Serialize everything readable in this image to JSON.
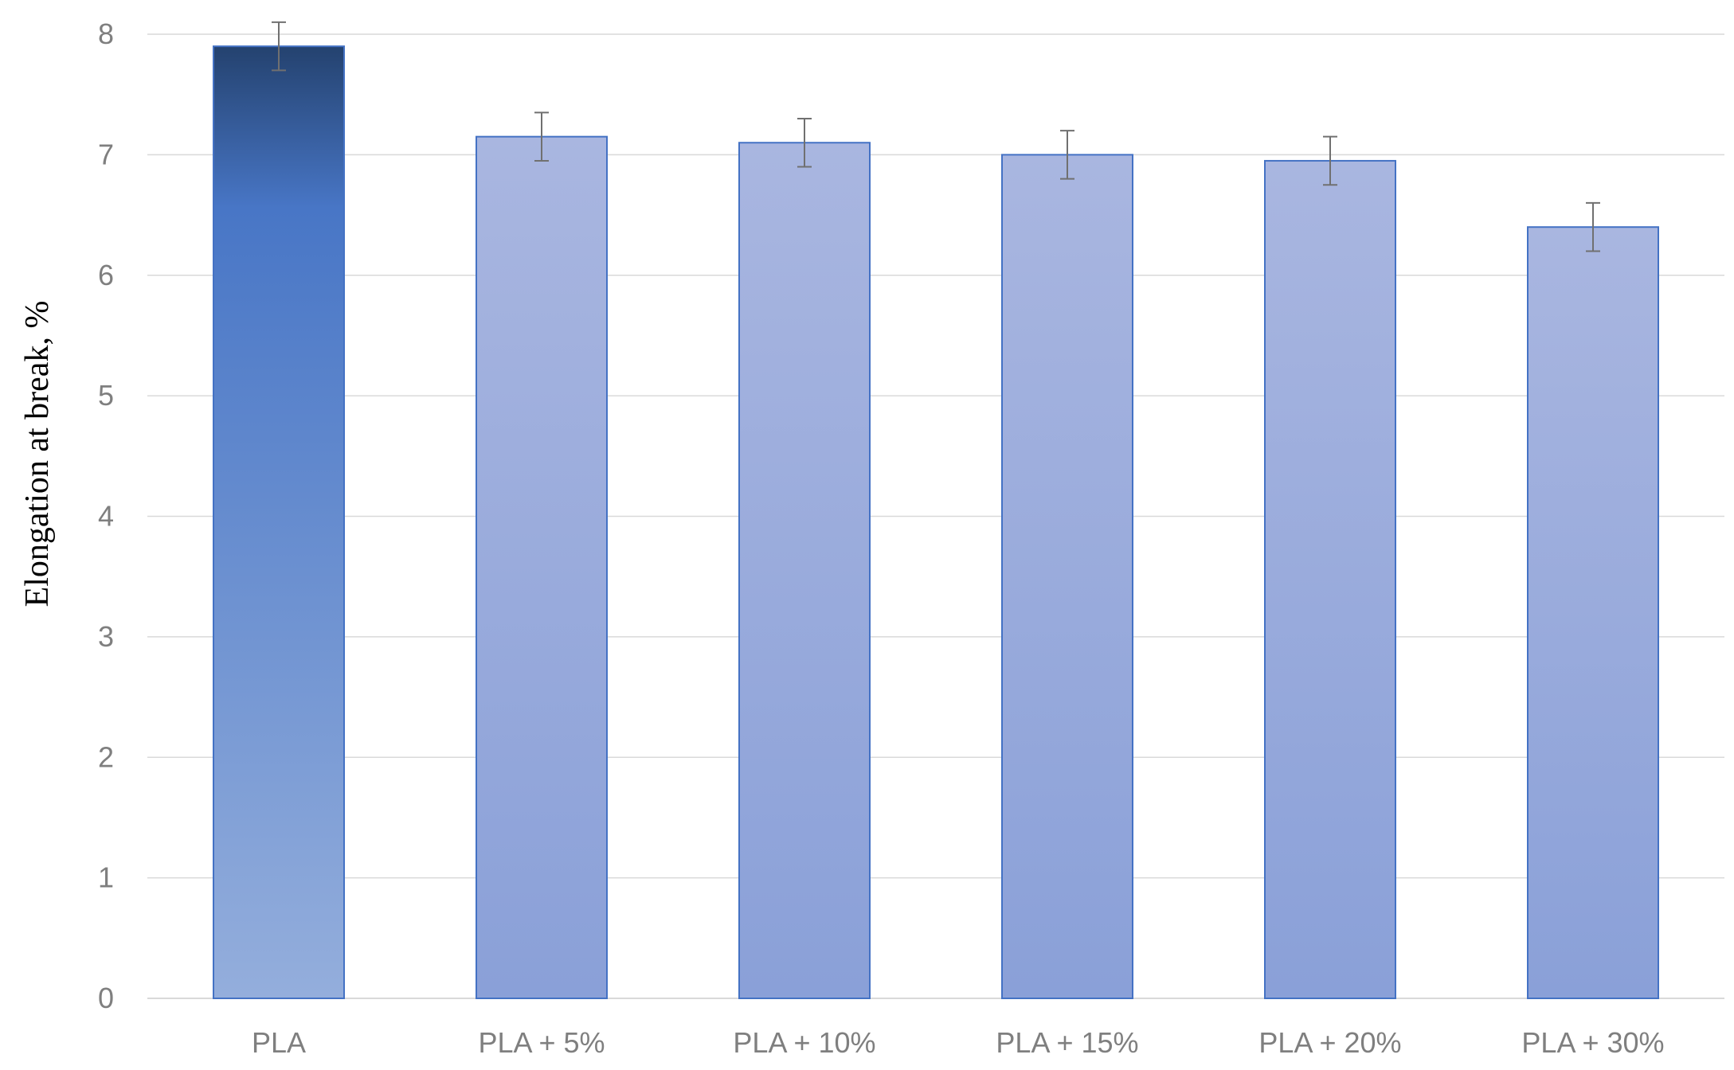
{
  "chart_data": {
    "type": "bar",
    "title": "",
    "xlabel": "",
    "ylabel": "Elongation at break, %",
    "ylim": [
      0,
      8
    ],
    "yticks": [
      0,
      1,
      2,
      3,
      4,
      5,
      6,
      7,
      8
    ],
    "ytick_labels": [
      "0",
      "1",
      "2",
      "3",
      "4",
      "5",
      "6",
      "7",
      "8"
    ],
    "categories": [
      "PLA",
      "PLA + 5%",
      "PLA + 10%",
      "PLA + 15%",
      "PLA + 20%",
      "PLA + 30%"
    ],
    "values": [
      7.9,
      7.15,
      7.1,
      7.0,
      6.95,
      6.4
    ],
    "errors": [
      0.2,
      0.2,
      0.2,
      0.2,
      0.2,
      0.2
    ],
    "grid": true,
    "legend": "none",
    "colors": {
      "pla_top": "#24426F",
      "pla_mid": "#4876C6",
      "pla_bottom": "#94AEDC",
      "blend_top": "#A9B6E0",
      "blend_bottom": "#8AA0D8",
      "bar_border": "#4472C4",
      "gridline": "#d9d9d9",
      "axis_line": "#d9d9d9",
      "error_bar": "#707070",
      "tick_text": "#7f7f7f"
    }
  }
}
